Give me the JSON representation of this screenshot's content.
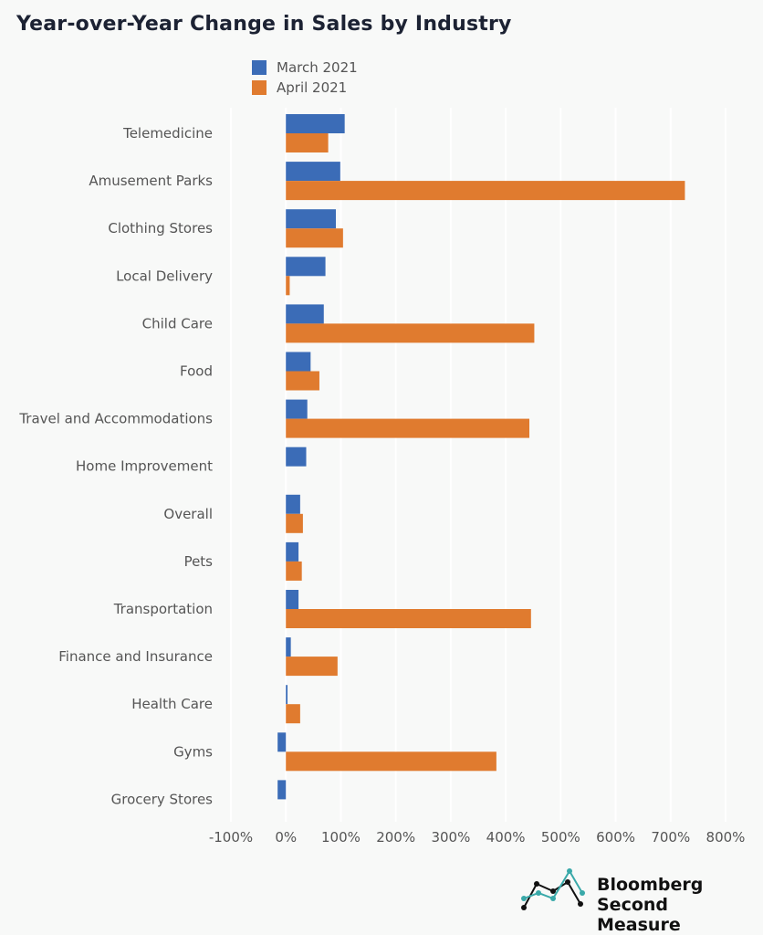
{
  "chart_data": {
    "type": "bar",
    "orientation": "horizontal",
    "title": "Year-over-Year Change in Sales by Industry",
    "categories": [
      "Telemedicine",
      "Amusement Parks",
      "Clothing Stores",
      "Local Delivery",
      "Child Care",
      "Food",
      "Travel and Accommodations",
      "Home Improvement",
      "Overall",
      "Pets",
      "Transportation",
      "Finance and Insurance",
      "Health Care",
      "Gyms",
      "Grocery Stores"
    ],
    "series": [
      {
        "name": "March 2021",
        "color": "#3b6cb7",
        "values": [
          107,
          99,
          91,
          72,
          69,
          45,
          39,
          37,
          26,
          23,
          23,
          9,
          3,
          -15,
          -15
        ]
      },
      {
        "name": "April 2021",
        "color": "#e07b2f",
        "values": [
          77,
          726,
          104,
          7,
          452,
          61,
          443,
          null,
          31,
          29,
          446,
          94,
          26,
          383,
          null
        ]
      }
    ],
    "xlim": [
      -100,
      800
    ],
    "xticks": [
      "-100%",
      "0%",
      "100%",
      "200%",
      "300%",
      "400%",
      "500%",
      "600%",
      "700%",
      "800%"
    ],
    "xtick_values": [
      -100,
      0,
      100,
      200,
      300,
      400,
      500,
      600,
      700,
      800
    ],
    "legend": "top-left",
    "grid": true
  },
  "logo": {
    "line1": "Bloomberg",
    "line2": "Second Measure"
  }
}
